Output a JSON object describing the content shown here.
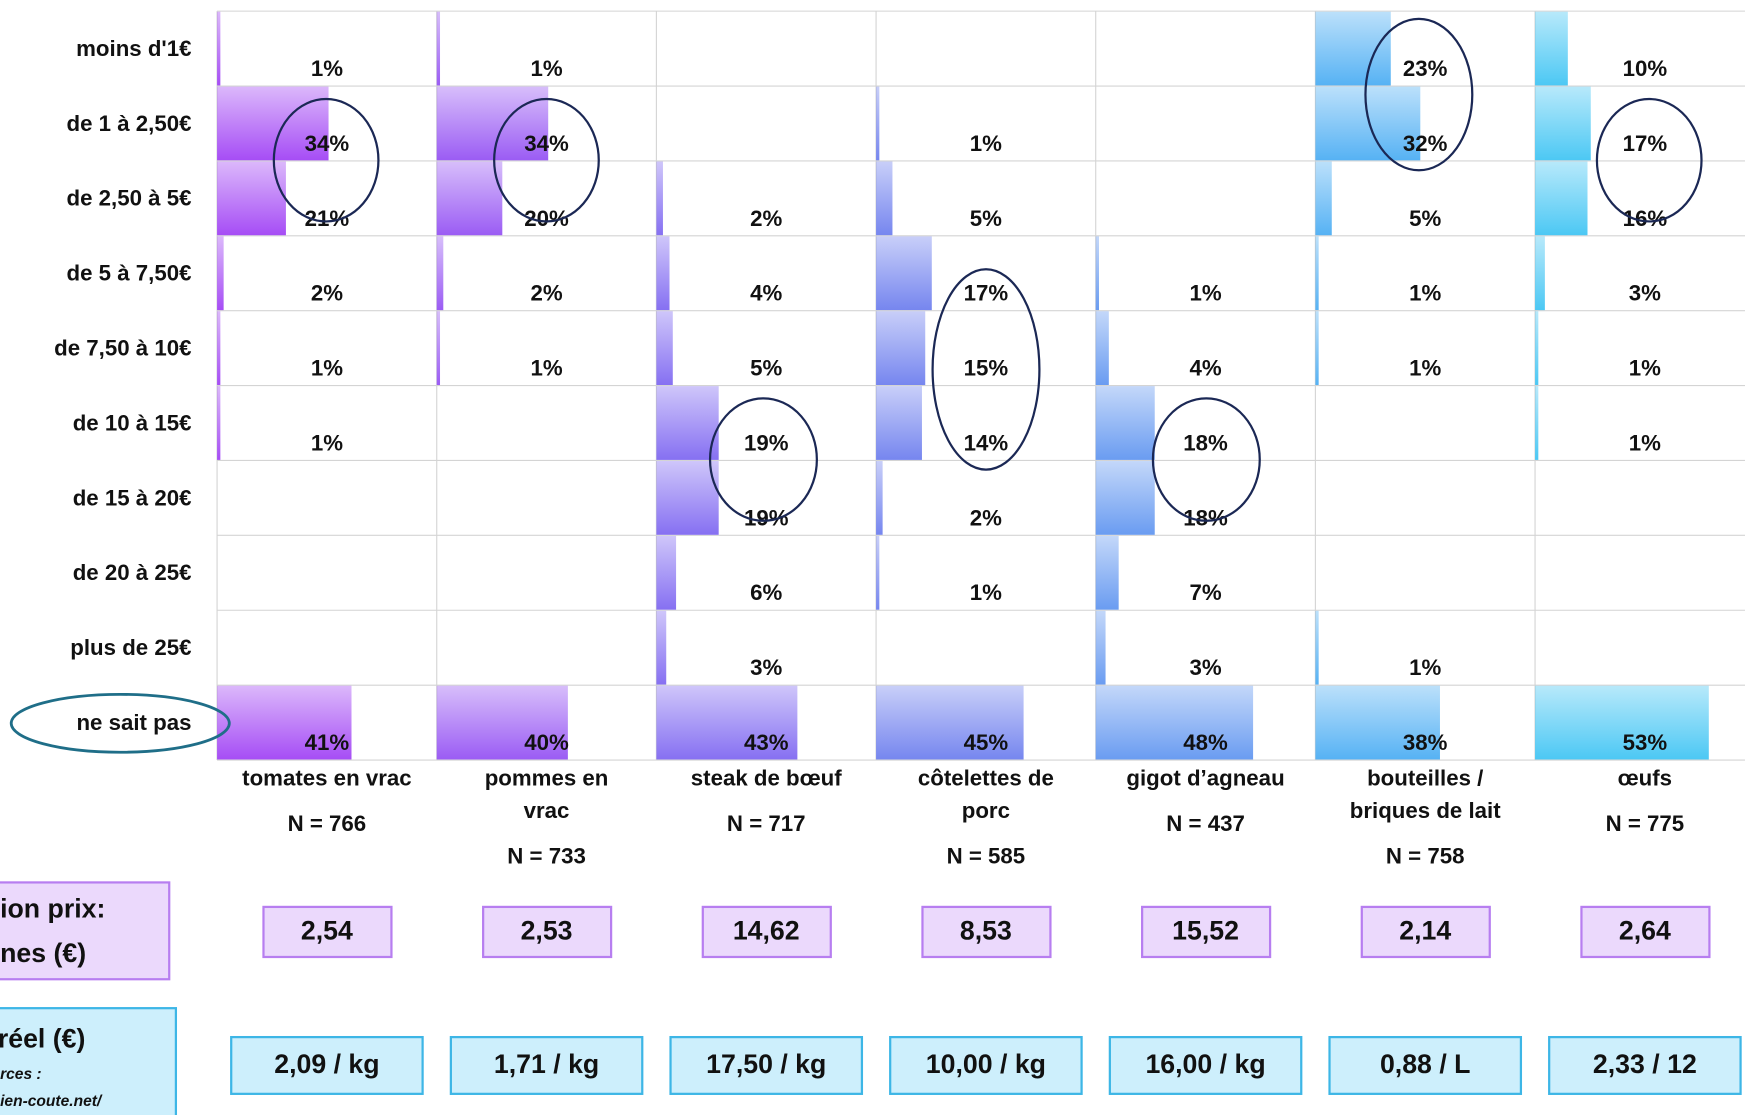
{
  "chart_data": {
    "type": "bar",
    "orientation": "horizontal",
    "categories": [
      "moins d'1€",
      "de 1 à 2,50€",
      "de 2,50 à 5€",
      "de 5 à 7,50€",
      "de 7,50 à 10€",
      "de 10 à 15€",
      "de 15 à 20€",
      "de 20 à 25€",
      "plus de 25€",
      "ne sait pas"
    ],
    "xlim": [
      0,
      67
    ],
    "series": [
      {
        "name": "tomates en vrac",
        "n_label": "N = 766",
        "color": "#a64df5",
        "values": [
          1,
          34,
          21,
          2,
          1,
          1,
          null,
          null,
          null,
          41
        ],
        "value_labels": [
          "1%",
          "34%",
          "21%",
          "2%",
          "1%",
          "1%",
          null,
          null,
          null,
          "41%"
        ],
        "median_label": "2,54",
        "price_label": "2,09 / kg"
      },
      {
        "name": "pommes en\nvrac",
        "n_label": "N = 733",
        "color": "#9b5cf4",
        "values": [
          1,
          34,
          20,
          2,
          1,
          null,
          null,
          null,
          null,
          40
        ],
        "value_labels": [
          "1%",
          "34%",
          "20%",
          "2%",
          "1%",
          null,
          null,
          null,
          null,
          "40%"
        ],
        "median_label": "2,53",
        "price_label": "1,71 / kg"
      },
      {
        "name": "steak de bœuf",
        "n_label": "N = 717",
        "color": "#8670f2",
        "values": [
          null,
          null,
          2,
          4,
          5,
          19,
          19,
          6,
          3,
          43
        ],
        "value_labels": [
          null,
          null,
          "2%",
          "4%",
          "5%",
          "19%",
          "19%",
          "6%",
          "3%",
          "43%"
        ],
        "median_label": "14,62",
        "price_label": "17,50 / kg"
      },
      {
        "name": "côtelettes de\nporc",
        "n_label": "N = 585",
        "color": "#7686ef",
        "values": [
          null,
          1,
          5,
          17,
          15,
          14,
          2,
          1,
          null,
          45
        ],
        "value_labels": [
          null,
          "1%",
          "5%",
          "17%",
          "15%",
          "14%",
          "2%",
          "1%",
          null,
          "45%"
        ],
        "median_label": "8,53",
        "price_label": "10,00 / kg"
      },
      {
        "name": "gigot d’agneau",
        "n_label": "N = 437",
        "color": "#6a9cf1",
        "values": [
          null,
          null,
          null,
          1,
          4,
          18,
          18,
          7,
          3,
          48
        ],
        "value_labels": [
          null,
          null,
          null,
          "1%",
          "4%",
          "18%",
          "18%",
          "7%",
          "3%",
          "48%"
        ],
        "median_label": "15,52",
        "price_label": "16,00 / kg"
      },
      {
        "name": "bouteilles /\nbriques de lait",
        "n_label": "N = 758",
        "color": "#56b2f4",
        "values": [
          23,
          32,
          5,
          1,
          1,
          null,
          null,
          null,
          1,
          38
        ],
        "value_labels": [
          "23%",
          "32%",
          "5%",
          "1%",
          "1%",
          null,
          null,
          null,
          "1%",
          "38%"
        ],
        "median_label": "2,14",
        "price_label": "0,88 / L"
      },
      {
        "name": "œufs",
        "n_label": "N = 775",
        "color": "#4cc8f4",
        "values": [
          10,
          17,
          16,
          3,
          1,
          1,
          null,
          null,
          null,
          53
        ],
        "value_labels": [
          "10%",
          "17%",
          "16%",
          "3%",
          "1%",
          "1%",
          null,
          null,
          null,
          "53%"
        ],
        "median_label": "2,64",
        "price_label": "2,33 / 12"
      }
    ],
    "median_header": [
      "ion prix:",
      "nes (€)"
    ],
    "price_header": "réel (€)",
    "price_sources": [
      "rces :",
      "ien-coute.net/"
    ]
  }
}
